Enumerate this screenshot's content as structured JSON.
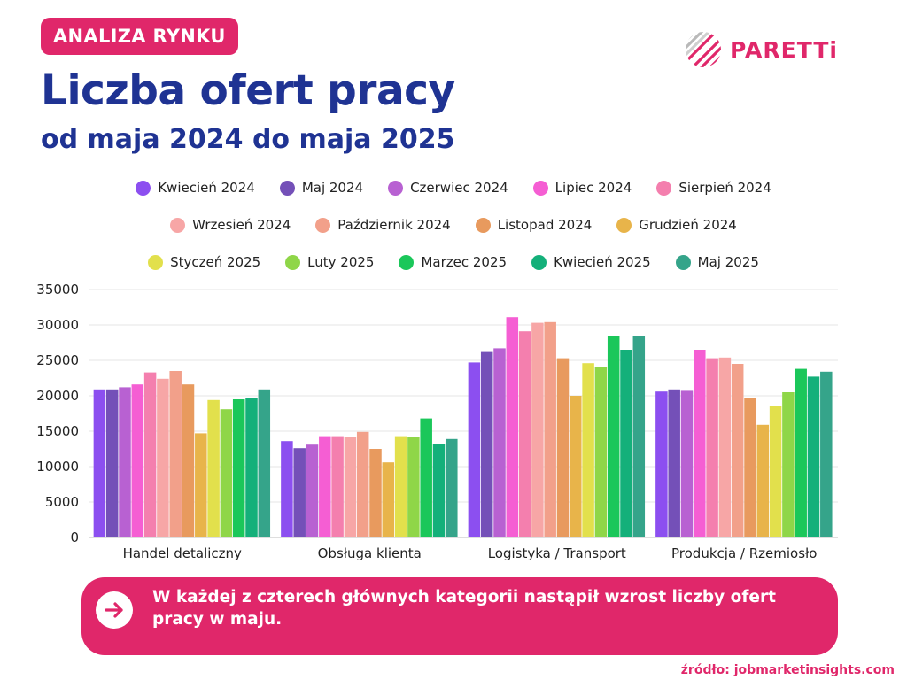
{
  "header": {
    "badge": "ANALIZA RYNKU",
    "title": "Liczba ofert pracy",
    "subtitle": "od maja 2024 do maja 2025"
  },
  "brand": {
    "name": "PARETTi",
    "color": "#e0276a"
  },
  "chart_data": {
    "type": "bar",
    "title": "Liczba ofert pracy",
    "subtitle": "od maja 2024 do maja 2025",
    "xlabel": "",
    "ylabel": "",
    "ylim": [
      0,
      35000
    ],
    "yticks": [
      0,
      5000,
      10000,
      15000,
      20000,
      25000,
      30000,
      35000
    ],
    "grid": true,
    "legend_position": "top",
    "categories": [
      "Handel detaliczny",
      "Obsługa klienta",
      "Logistyka / Transport",
      "Produkcja / Rzemiosło"
    ],
    "series": [
      {
        "name": "Kwiecień 2024",
        "color": "#8c4ff0",
        "values": [
          20900,
          13600,
          24700,
          20600
        ]
      },
      {
        "name": "Maj 2024",
        "color": "#7450b8",
        "values": [
          20900,
          12600,
          26300,
          20900
        ]
      },
      {
        "name": "Czerwiec 2024",
        "color": "#b861d2",
        "values": [
          21200,
          13100,
          26700,
          20700
        ]
      },
      {
        "name": "Lipiec 2024",
        "color": "#f55ed3",
        "values": [
          21600,
          14300,
          31100,
          26500
        ]
      },
      {
        "name": "Sierpień 2024",
        "color": "#f47fae",
        "values": [
          23300,
          14300,
          29100,
          25300
        ]
      },
      {
        "name": "Wrzesień 2024",
        "color": "#f7a6a6",
        "values": [
          22400,
          14200,
          30300,
          25400
        ]
      },
      {
        "name": "Październik 2024",
        "color": "#f2a08a",
        "values": [
          23500,
          14900,
          30400,
          24500
        ]
      },
      {
        "name": "Listopad 2024",
        "color": "#e89a5e",
        "values": [
          21600,
          12500,
          25300,
          19700
        ]
      },
      {
        "name": "Grudzień 2024",
        "color": "#e8b44a",
        "values": [
          14700,
          10600,
          20000,
          15900
        ]
      },
      {
        "name": "Styczeń 2025",
        "color": "#e2e04c",
        "values": [
          19400,
          14300,
          24600,
          18500
        ]
      },
      {
        "name": "Luty 2025",
        "color": "#8fd648",
        "values": [
          18100,
          14200,
          24100,
          20500
        ]
      },
      {
        "name": "Marzec 2025",
        "color": "#1bc75a",
        "values": [
          19500,
          16800,
          28400,
          23800
        ]
      },
      {
        "name": "Kwiecień 2025",
        "color": "#14b07a",
        "values": [
          19700,
          13200,
          26500,
          22700
        ]
      },
      {
        "name": "Maj 2025",
        "color": "#35a48a",
        "values": [
          20900,
          13900,
          28400,
          23400
        ]
      }
    ]
  },
  "callout": {
    "icon": "arrow-right-icon",
    "text": "W każdej z czterech głównych kategorii nastąpił wzrost liczby ofert pracy w maju."
  },
  "footer": {
    "source": "źródło: jobmarketinsights.com"
  }
}
